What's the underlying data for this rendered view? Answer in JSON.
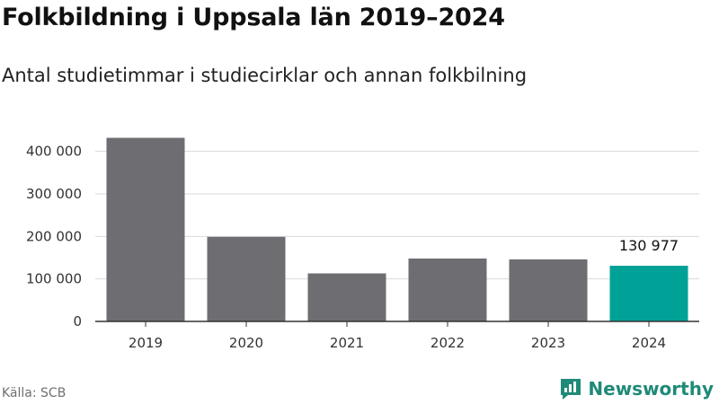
{
  "header": {
    "title": "Folkbildning i Uppsala län 2019–2024",
    "subtitle": "Antal studietimmar i studiecirklar och annan folkbilning"
  },
  "footer": {
    "source": "Källa: SCB",
    "brand": "Newsworthy",
    "brand_icon": "bar-chart-speech-bubble-icon"
  },
  "colors": {
    "bar": "#6e6d72",
    "highlight": "#00a297",
    "grid": "#d9d9d9",
    "axis": "#333333",
    "brand": "#1f8a78"
  },
  "chart_data": {
    "type": "bar",
    "categories": [
      "2019",
      "2020",
      "2021",
      "2022",
      "2023",
      "2024"
    ],
    "values": [
      432000,
      199000,
      113000,
      148000,
      146000,
      130977
    ],
    "highlight_index": 5,
    "data_labels": [
      {
        "index": 5,
        "text": "130 977"
      }
    ],
    "ylim": [
      0,
      450000
    ],
    "yticks": [
      0,
      100000,
      200000,
      300000,
      400000
    ],
    "ytick_labels": [
      "0",
      "100 000",
      "200 000",
      "300 000",
      "400 000"
    ],
    "grid": true
  }
}
